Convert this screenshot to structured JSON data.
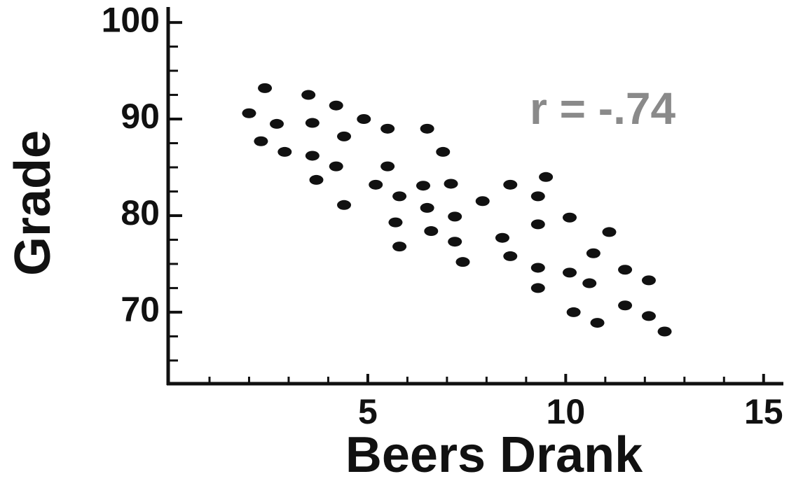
{
  "chart_data": {
    "type": "scatter",
    "xlabel": "Beers Drank",
    "ylabel": "Grade",
    "annotation": "r = -.74",
    "color": "#111111",
    "xlim": [
      0,
      15.5
    ],
    "ylim": [
      62.6,
      101.6
    ],
    "xticks": [
      5,
      10,
      15
    ],
    "yticks": [
      70,
      80,
      90,
      100
    ],
    "xminorticks": [
      1,
      2,
      3,
      4,
      6,
      7,
      8,
      9,
      11,
      12,
      13,
      14
    ],
    "yminorticks": [
      65,
      67.5,
      72.5,
      75,
      77.5,
      82.5,
      85,
      87.5,
      92.5,
      95,
      97.5
    ],
    "x": [
      2.0,
      2.4,
      2.3,
      2.7,
      2.9,
      3.5,
      3.6,
      3.6,
      3.7,
      4.2,
      4.2,
      4.4,
      4.4,
      4.9,
      5.2,
      5.5,
      5.5,
      5.8,
      5.7,
      5.8,
      6.4,
      6.5,
      6.5,
      6.6,
      6.9,
      7.1,
      7.2,
      7.2,
      7.4,
      7.9,
      8.4,
      8.6,
      8.6,
      9.3,
      9.3,
      9.3,
      9.3,
      9.5,
      10.1,
      10.1,
      10.2,
      10.6,
      10.7,
      10.8,
      11.1,
      11.5,
      11.5,
      12.1,
      12.1,
      12.5
    ],
    "values": [
      90.6,
      93.2,
      87.7,
      89.5,
      86.6,
      92.5,
      89.6,
      86.2,
      83.7,
      91.4,
      85.1,
      88.2,
      81.1,
      90.0,
      83.2,
      89.0,
      85.1,
      82.0,
      79.3,
      76.8,
      83.1,
      89.0,
      80.8,
      78.4,
      86.6,
      83.3,
      79.9,
      77.3,
      75.2,
      81.5,
      77.7,
      75.8,
      83.2,
      74.6,
      82.0,
      72.5,
      79.1,
      84.0,
      74.1,
      79.8,
      70.0,
      73.0,
      76.1,
      68.9,
      78.3,
      74.4,
      70.7,
      73.3,
      69.6,
      68.0
    ]
  }
}
